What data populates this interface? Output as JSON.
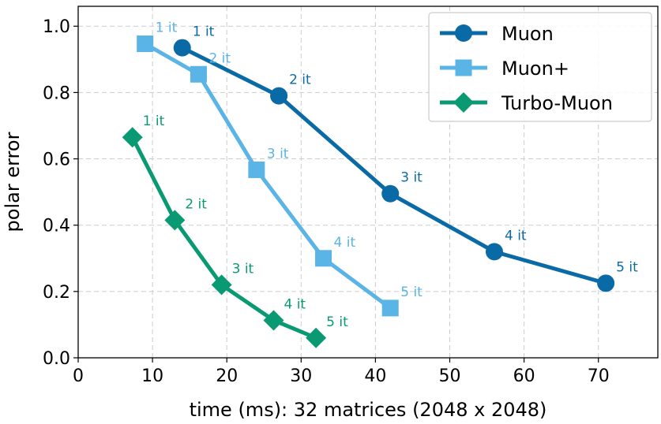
{
  "chart_data": {
    "type": "line",
    "title": "",
    "xlabel": "time (ms): 32 matrices (2048 x 2048)",
    "ylabel": "polar error",
    "xlim": [
      0,
      78
    ],
    "ylim": [
      0,
      1.06
    ],
    "xticks": [
      0,
      10,
      20,
      30,
      40,
      50,
      60,
      70
    ],
    "yticks": [
      0.0,
      0.2,
      0.4,
      0.6,
      0.8,
      1.0
    ],
    "xtick_labels": [
      "0",
      "10",
      "20",
      "30",
      "40",
      "50",
      "60",
      "70"
    ],
    "ytick_labels": [
      "0.0",
      "0.2",
      "0.4",
      "0.6",
      "0.8",
      "1.0"
    ],
    "grid": true,
    "legend_position": "top-right",
    "series": [
      {
        "name": "Muon",
        "color": "#0a6aa6",
        "label_color": "#0a6aa6",
        "marker": "circle",
        "x": [
          14,
          27,
          42,
          56,
          71
        ],
        "y": [
          0.935,
          0.79,
          0.495,
          0.32,
          0.225
        ],
        "point_labels": [
          "1 it",
          "2 it",
          "3 it",
          "4 it",
          "5 it"
        ]
      },
      {
        "name": "Muon+",
        "color": "#5ab4e6",
        "label_color": "#5ab4e6",
        "marker": "square",
        "x": [
          9,
          16.2,
          24,
          33,
          42
        ],
        "y": [
          0.947,
          0.855,
          0.567,
          0.3,
          0.15
        ],
        "point_labels": [
          "1 it",
          "2 it",
          "3 it",
          "4 it",
          "5 it"
        ]
      },
      {
        "name": "Turbo-Muon",
        "color": "#0a9a73",
        "label_color": "#0a9a73",
        "marker": "diamond",
        "x": [
          7.3,
          13,
          19.3,
          26.3,
          32
        ],
        "y": [
          0.665,
          0.415,
          0.22,
          0.113,
          0.06
        ],
        "point_labels": [
          "1 it",
          "2 it",
          "3 it",
          "4 it",
          "5 it"
        ]
      }
    ]
  }
}
